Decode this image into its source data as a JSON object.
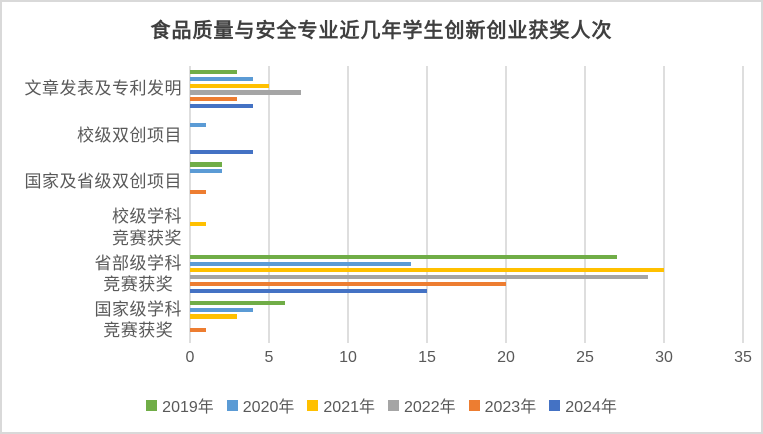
{
  "chart_data": {
    "type": "bar",
    "orientation": "horizontal",
    "title": "食品质量与安全专业近几年学生创新创业获奖人次",
    "categories": [
      "文章发表及专利发明",
      "校级双创项目",
      "国家及省级双创项目",
      "校级学科竞赛获奖",
      "省部级学科竞赛获奖",
      "国家级学科竞赛获奖"
    ],
    "category_label_lines": [
      [
        "文章发表及专利发明"
      ],
      [
        "校级双创项目"
      ],
      [
        "国家及省级双创项目"
      ],
      [
        "校级学科",
        "竞赛获奖"
      ],
      [
        "省部级学科",
        "竞赛获奖"
      ],
      [
        "国家级学科",
        "竞赛获奖"
      ]
    ],
    "series": [
      {
        "name": "2019年",
        "color": "#70AD47",
        "values": [
          3,
          0,
          2,
          0,
          27,
          6
        ]
      },
      {
        "name": "2020年",
        "color": "#5B9BD5",
        "values": [
          4,
          1,
          2,
          0,
          14,
          4
        ]
      },
      {
        "name": "2021年",
        "color": "#FFC000",
        "values": [
          5,
          0,
          0,
          1,
          30,
          3
        ]
      },
      {
        "name": "2022年",
        "color": "#A5A5A5",
        "values": [
          7,
          0,
          0,
          0,
          29,
          0
        ]
      },
      {
        "name": "2023年",
        "color": "#ED7D31",
        "values": [
          3,
          0,
          1,
          0,
          20,
          1
        ]
      },
      {
        "name": "2024年",
        "color": "#4472C4",
        "values": [
          4,
          4,
          0,
          0,
          15,
          0
        ]
      }
    ],
    "xlim": [
      0,
      35
    ],
    "xticks": [
      "0",
      "5",
      "10",
      "15",
      "20",
      "25",
      "30",
      "35"
    ],
    "grid": true,
    "legend_position": "bottom",
    "text_color": "#595959",
    "title_color": "#3f3f3f",
    "gridline_color": "#dedede"
  }
}
